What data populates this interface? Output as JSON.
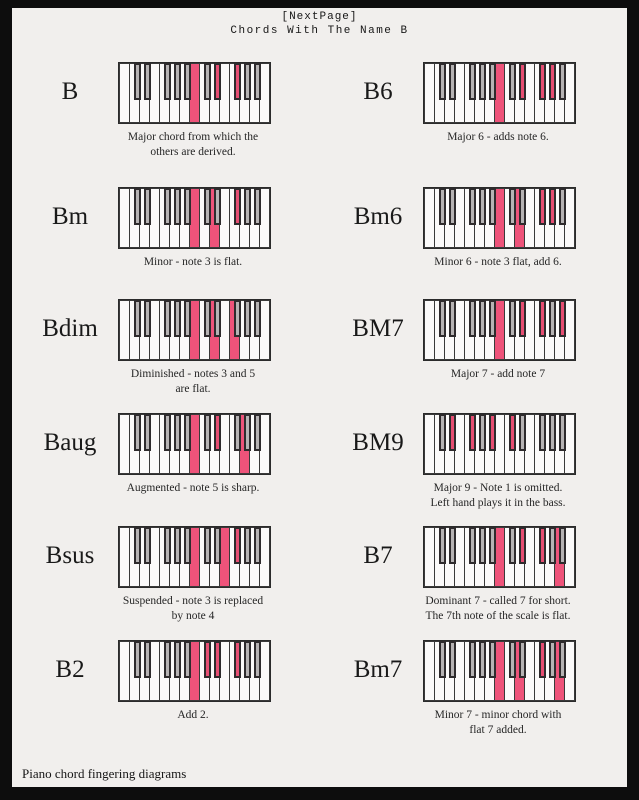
{
  "page": {
    "header_tag": "[NextPage]",
    "title": "Chords With The Name B",
    "footer": "Piano chord fingering diagrams"
  },
  "colors": {
    "highlight_pink": "#ee537a",
    "highlight_pink_black_key": "#e64e73",
    "black_key_gray": "#b6b3b4",
    "page_background": "#f1efed",
    "frame_black": "#0d0d0d"
  },
  "keyboard": {
    "white_key_count": 15,
    "white_notes": [
      "B",
      "C",
      "D",
      "E",
      "F",
      "G",
      "A",
      "B",
      "C",
      "D",
      "E",
      "F",
      "G",
      "A",
      "B"
    ],
    "black_notes": [
      "C#",
      "D#",
      "F#",
      "G#",
      "A#",
      "C#",
      "D#",
      "F#",
      "G#",
      "A#"
    ],
    "black_after_white_index": [
      1,
      2,
      4,
      5,
      6,
      8,
      9,
      11,
      12,
      13
    ]
  },
  "chords": [
    {
      "label": "B",
      "row": 1,
      "column": "left",
      "caption": "Major chord from which the\nothers are derived.",
      "notes": "B D# F#",
      "highlighted_whites": [
        7
      ],
      "highlighted_blacks": [
        6,
        7
      ]
    },
    {
      "label": "B6",
      "row": 1,
      "column": "right",
      "caption": "Major 6 - adds note 6.",
      "notes": "B D# F# G#",
      "highlighted_whites": [
        7
      ],
      "highlighted_blacks": [
        6,
        7,
        8
      ]
    },
    {
      "label": "Bm",
      "row": 2,
      "column": "left",
      "caption": "Minor - note 3 is flat.",
      "notes": "B D F#",
      "highlighted_whites": [
        7,
        9
      ],
      "highlighted_blacks": [
        7
      ]
    },
    {
      "label": "Bm6",
      "row": 2,
      "column": "right",
      "caption": "Minor 6 - note 3 flat, add 6.",
      "notes": "B D F# G#",
      "highlighted_whites": [
        7,
        9
      ],
      "highlighted_blacks": [
        7,
        8
      ]
    },
    {
      "label": "Bdim",
      "row": 3,
      "column": "left",
      "caption": "Diminished - notes 3 and 5\nare flat.",
      "notes": "B D F",
      "highlighted_whites": [
        7,
        9,
        11
      ],
      "highlighted_blacks": []
    },
    {
      "label": "BM7",
      "row": 3,
      "column": "right",
      "caption": "Major 7 - add note 7",
      "notes": "B D# F# A#",
      "highlighted_whites": [
        7
      ],
      "highlighted_blacks": [
        6,
        7,
        9
      ]
    },
    {
      "label": "Baug",
      "row": 4,
      "column": "left",
      "caption": "Augmented - note 5 is sharp.",
      "notes": "B D# G",
      "highlighted_whites": [
        7,
        12
      ],
      "highlighted_blacks": [
        6
      ]
    },
    {
      "label": "BM9",
      "row": 4,
      "column": "right",
      "caption": "Major 9 - Note 1 is omitted.\nLeft hand plays it in the bass.",
      "notes": "D# F# A# C#",
      "highlighted_whites": [],
      "highlighted_blacks": [
        1,
        2,
        4,
        5
      ]
    },
    {
      "label": "Bsus",
      "row": 5,
      "column": "left",
      "caption": "Suspended - note 3 is replaced\nby note 4",
      "notes": "B E F#",
      "highlighted_whites": [
        7,
        10
      ],
      "highlighted_blacks": [
        7
      ]
    },
    {
      "label": "B7",
      "row": 5,
      "column": "right",
      "caption": "Dominant 7 - called 7 for short.\nThe 7th note of the scale is flat.",
      "notes": "B D# F# A",
      "highlighted_whites": [
        7,
        13
      ],
      "highlighted_blacks": [
        6,
        7
      ]
    },
    {
      "label": "B2",
      "row": 6,
      "column": "left",
      "caption": "Add 2.",
      "notes": "B C# D# F#",
      "highlighted_whites": [
        7
      ],
      "highlighted_blacks": [
        5,
        6,
        7
      ]
    },
    {
      "label": "Bm7",
      "row": 6,
      "column": "right",
      "caption": "Minor 7 - minor chord with\nflat 7 added.",
      "notes": "B D F# A",
      "highlighted_whites": [
        7,
        9,
        13
      ],
      "highlighted_blacks": [
        7
      ]
    }
  ]
}
